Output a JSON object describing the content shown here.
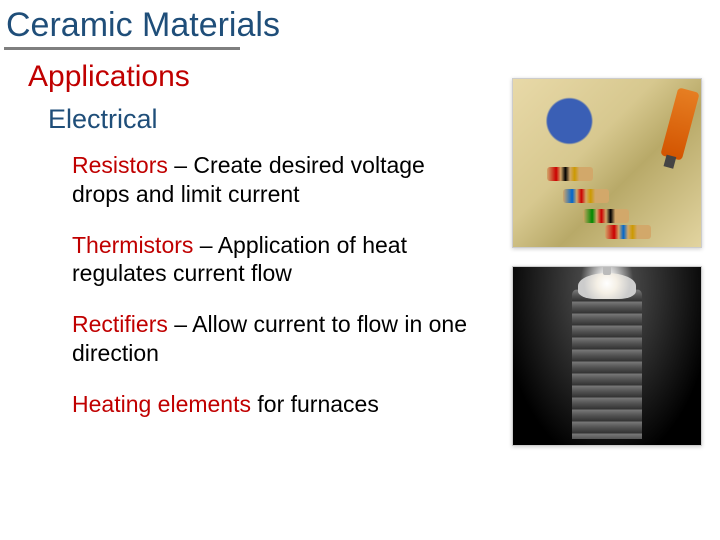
{
  "title": "Ceramic Materials",
  "section": "Applications",
  "subsection": "Electrical",
  "items": [
    {
      "term": "Resistors",
      "desc": " – Create desired voltage drops and limit current"
    },
    {
      "term": "Thermistors",
      "desc": " – Application of heat regulates current flow"
    },
    {
      "term": "Rectifiers",
      "desc": " – Allow current to flow in one direction"
    },
    {
      "term": "Heating elements",
      "desc": " for furnaces"
    }
  ],
  "colors": {
    "title": "#1f4e79",
    "accent": "#c00000",
    "underline": "#7f7f7f",
    "body": "#000000",
    "background": "#ffffff"
  }
}
